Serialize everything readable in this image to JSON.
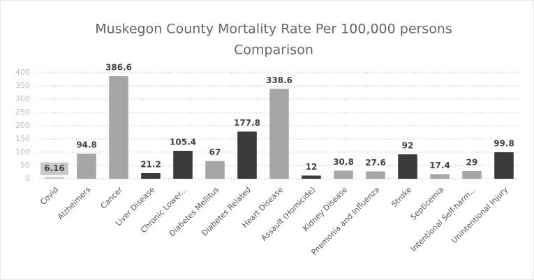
{
  "chart_data": {
    "type": "bar",
    "title": "Muskegon County Mortality Rate Per 100,000 persons",
    "subtitle": "Comparison",
    "categories": [
      "Covid",
      "Alzheimers",
      "Cancer",
      "Liver Disease",
      "Chronic Lower...",
      "Diabetes Mellitus",
      "Diabetes Related",
      "Heart Disease",
      "Assault (Homicide)",
      "Kidney Disease",
      "Pnemonia and Influenza",
      "Stroke",
      "Septicemia",
      "Intentional Self-harm...",
      "Unintentional Injury"
    ],
    "values": [
      6.16,
      94.8,
      386.6,
      21.2,
      105.4,
      67,
      177.8,
      338.6,
      12,
      30.8,
      27.6,
      92,
      17.4,
      29,
      99.8
    ],
    "colors": [
      "#c8c8c8",
      "#a6a6a6",
      "#a6a6a6",
      "#3a3a3a",
      "#3a3a3a",
      "#a6a6a6",
      "#3a3a3a",
      "#a6a6a6",
      "#3a3a3a",
      "#a6a6a6",
      "#a6a6a6",
      "#3a3a3a",
      "#a6a6a6",
      "#a6a6a6",
      "#3a3a3a"
    ],
    "ylim": [
      0,
      400
    ],
    "yticks": [
      0,
      50,
      100,
      150,
      200,
      250,
      300,
      350,
      400
    ],
    "grid": true
  }
}
